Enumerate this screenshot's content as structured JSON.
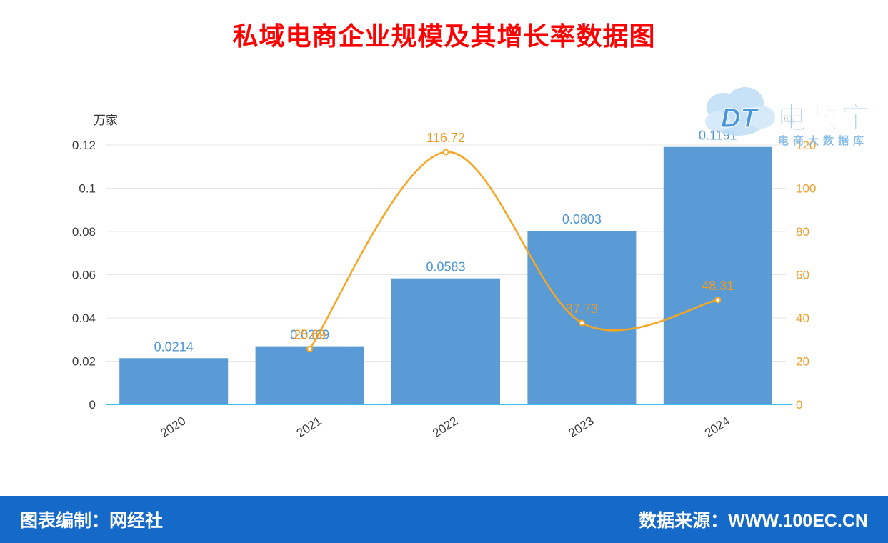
{
  "title": "私域电商企业规模及其增长率数据图",
  "title_color": "#ff0000",
  "logo": {
    "cloud_text": "DT",
    "name": "电数宝",
    "subtitle": "电商大数据库"
  },
  "footer": {
    "credit": "图表编制：网经社",
    "source": "数据来源：WWW.100EC.CN",
    "background": "#1569c9"
  },
  "chart_data": {
    "type": "bar+line combo",
    "title": "私域电商企业规模及其增长率数据图",
    "categories": [
      "2020",
      "2021",
      "2022",
      "2023",
      "2024"
    ],
    "series": [
      {
        "name": "私域电商企业规模",
        "type": "bar",
        "axis": "left",
        "unit": "万家",
        "color": "#5b9bd5",
        "label_color": "#4d96d6",
        "values": [
          0.0214,
          0.0269,
          0.0583,
          0.0803,
          0.1191
        ]
      },
      {
        "name": "增长率",
        "type": "line",
        "axis": "right",
        "unit": "%",
        "color": "#f5a623",
        "label_color": "#f09a1e",
        "values": [
          null,
          25.69,
          116.72,
          37.73,
          48.31
        ]
      }
    ],
    "left_axis": {
      "name": "万家",
      "ticks": [
        0,
        0.02,
        0.04,
        0.06,
        0.08,
        0.1,
        0.12
      ],
      "max": 0.12,
      "tick_color": "#3c3c3c"
    },
    "right_axis": {
      "name": "%",
      "ticks": [
        0,
        20,
        40,
        60,
        80,
        100,
        120
      ],
      "max": 120,
      "tick_color": "#ee9d2a"
    },
    "grid": true,
    "grid_color": "#e7e7e7",
    "baseline_color": "#3fbdf0",
    "legend_position": "none"
  }
}
